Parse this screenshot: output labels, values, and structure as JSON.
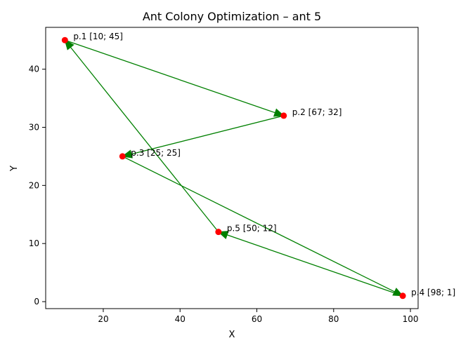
{
  "chart_data": {
    "type": "scatter",
    "title": "Ant Colony Optimization – ant 5",
    "xlabel": "X",
    "ylabel": "Y",
    "xlim": [
      5,
      102
    ],
    "ylim": [
      -1.2,
      47.2
    ],
    "xticks": [
      20,
      40,
      60,
      80,
      100
    ],
    "yticks": [
      0,
      10,
      20,
      30,
      40
    ],
    "grid": false,
    "colors": {
      "point": "#ff0000",
      "arrow": "#008000"
    },
    "points": [
      {
        "label": "p.1 [10; 45]",
        "x": 10,
        "y": 45
      },
      {
        "label": "p.2 [67; 32]",
        "x": 67,
        "y": 32
      },
      {
        "label": "p.3 [25; 25]",
        "x": 25,
        "y": 25
      },
      {
        "label": "p.4 [98; 1]",
        "x": 98,
        "y": 1
      },
      {
        "label": "p.5 [50; 12]",
        "x": 50,
        "y": 12
      }
    ],
    "path": [
      {
        "from": 1,
        "to": 2
      },
      {
        "from": 2,
        "to": 3
      },
      {
        "from": 3,
        "to": 4
      },
      {
        "from": 4,
        "to": 5
      },
      {
        "from": 5,
        "to": 1
      }
    ]
  }
}
